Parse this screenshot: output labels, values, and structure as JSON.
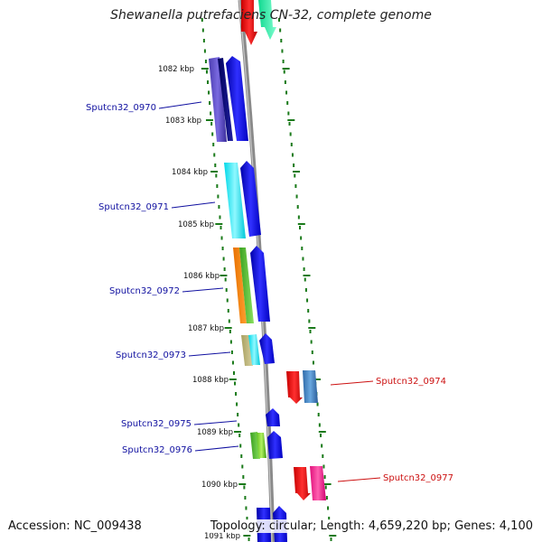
{
  "title": "Shewanella putrefaciens CN-32, complete genome",
  "footer": {
    "accession": "Accession: NC_009438",
    "summary": "Topology: circular; Length: 4,659,220 bp; Genes: 4,100"
  },
  "kbp_labels": [
    "1082 kbp",
    "1083 kbp",
    "1084 kbp",
    "1085 kbp",
    "1086 kbp",
    "1087 kbp",
    "1088 kbp",
    "1089 kbp",
    "1090 kbp",
    "1091 kbp"
  ],
  "genes_left": [
    "Sputcn32_0970",
    "Sputcn32_0971",
    "Sputcn32_0972",
    "Sputcn32_0973",
    "Sputcn32_0975",
    "Sputcn32_0976"
  ],
  "genes_right": [
    "Sputcn32_0974",
    "Sputcn32_0977"
  ],
  "colors": {
    "backbone": "#8a8a8a",
    "tick": "#1a7a1a",
    "forward_strand": "#0000ee",
    "reverse_strand": "#ee0000",
    "left_label": "#1010a0",
    "right_label": "#cc1010"
  }
}
